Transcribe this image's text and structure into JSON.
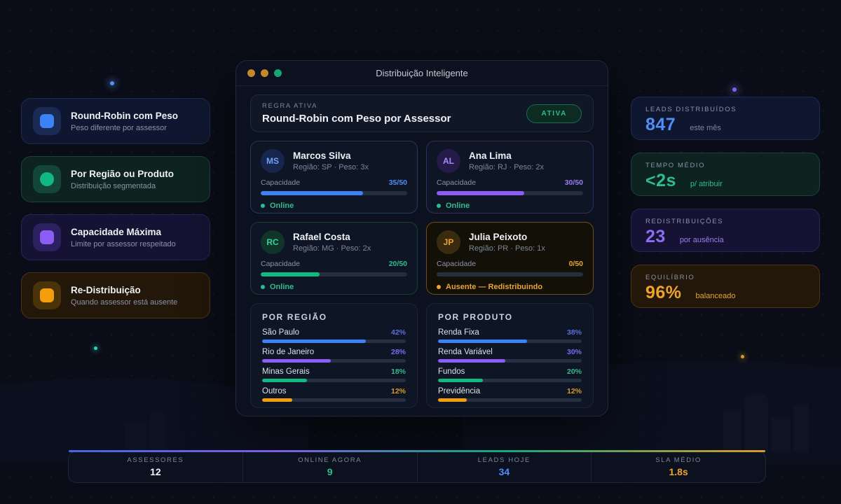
{
  "colors": {
    "blue": "#3b82f6",
    "purple": "#8b5cf6",
    "green": "#10b981",
    "amber": "#f59e0b",
    "online": "#2fbd8b"
  },
  "window": {
    "title": "Distribuição Inteligente",
    "rule": {
      "label": "REGRA ATIVA",
      "name": "Round-Robin com Peso por Assessor",
      "badge": "ATIVA"
    },
    "advisors": [
      {
        "initials": "MS",
        "name": "Marcos Silva",
        "meta": "Região: SP · Peso: 3x",
        "capacity_label": "Capacidade",
        "capacity": "35/50",
        "capacity_pct": 70,
        "status": "Online",
        "accent": "#3b82f6"
      },
      {
        "initials": "AL",
        "name": "Ana Lima",
        "meta": "Região: RJ · Peso: 2x",
        "capacity_label": "Capacidade",
        "capacity": "30/50",
        "capacity_pct": 60,
        "status": "Online",
        "accent": "#8b5cf6"
      },
      {
        "initials": "RC",
        "name": "Rafael Costa",
        "meta": "Região: MG · Peso: 2x",
        "capacity_label": "Capacidade",
        "capacity": "20/50",
        "capacity_pct": 40,
        "status": "Online",
        "accent": "#10b981"
      },
      {
        "initials": "JP",
        "name": "Julia Peixoto",
        "meta": "Região: PR · Peso: 1x",
        "capacity_label": "Capacidade",
        "capacity": "0/50",
        "capacity_pct": 0,
        "status": "Ausente — Redistribuindo",
        "accent": "#f59e0b"
      }
    ],
    "by_region": {
      "title": "POR REGIÃO",
      "rows": [
        {
          "label": "São Paulo",
          "value": "42%",
          "fill": 72,
          "color": "#3b82f6"
        },
        {
          "label": "Rio de Janeiro",
          "value": "28%",
          "fill": 48,
          "color": "#8b5cf6"
        },
        {
          "label": "Minas Gerais",
          "value": "18%",
          "fill": 31,
          "color": "#10b981"
        },
        {
          "label": "Outros",
          "value": "12%",
          "fill": 21,
          "color": "#f59e0b"
        }
      ]
    },
    "by_product": {
      "title": "POR PRODUTO",
      "rows": [
        {
          "label": "Renda Fixa",
          "value": "38%",
          "fill": 62,
          "color": "#3b82f6"
        },
        {
          "label": "Renda Variável",
          "value": "30%",
          "fill": 47,
          "color": "#8b5cf6"
        },
        {
          "label": "Fundos",
          "value": "20%",
          "fill": 31,
          "color": "#10b981"
        },
        {
          "label": "Previdência",
          "value": "12%",
          "fill": 20,
          "color": "#f59e0b"
        }
      ]
    }
  },
  "methods": [
    {
      "title": "Round-Robin com Peso",
      "subtitle": "Peso diferente por assessor",
      "color": "#3b82f6",
      "icon": "rounded-square"
    },
    {
      "title": "Por Região ou Produto",
      "subtitle": "Distribuição segmentada",
      "color": "#10b981",
      "icon": "circle"
    },
    {
      "title": "Capacidade Máxima",
      "subtitle": "Limite por assessor respeitado",
      "color": "#8b5cf6",
      "icon": "rounded-square"
    },
    {
      "title": "Re-Distribuição",
      "subtitle": "Quando assessor está ausente",
      "color": "#f59e0b",
      "icon": "rounded-square"
    }
  ],
  "stats": [
    {
      "label": "LEADS DISTRIBUÍDOS",
      "value": "847",
      "suffix": "este mês",
      "color": "#4f8df7"
    },
    {
      "label": "TEMPO MÉDIO",
      "value": "<2s",
      "suffix": "p/ atribuir",
      "color": "#2fbd8b"
    },
    {
      "label": "REDISTRIBUIÇÕES",
      "value": "23",
      "suffix": "por ausência",
      "color": "#8f6df2"
    },
    {
      "label": "EQUILÍBRIO",
      "value": "96%",
      "suffix": "balanceado",
      "color": "#eea32c"
    }
  ],
  "footer": {
    "items": [
      {
        "label": "ASSESSORES",
        "value": "12",
        "color": "#eef1f6"
      },
      {
        "label": "ONLINE AGORA",
        "value": "9",
        "color": "#2fbd8b"
      },
      {
        "label": "LEADS HOJE",
        "value": "34",
        "color": "#4f8df7"
      },
      {
        "label": "SLA MÉDIO",
        "value": "1.8s",
        "color": "#eea32c"
      }
    ]
  }
}
